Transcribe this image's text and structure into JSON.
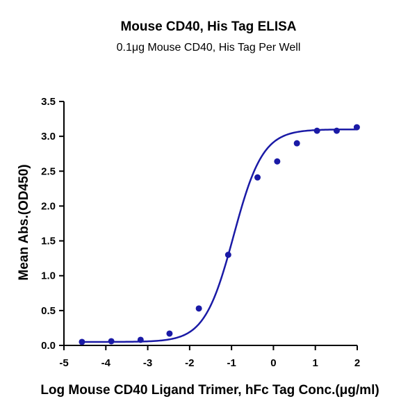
{
  "chart_data": {
    "type": "scatter",
    "title": "Mouse CD40, His Tag ELISA",
    "subtitle": "0.1μg Mouse CD40, His Tag Per Well",
    "xlabel": "Log Mouse CD40 Ligand Trimer, hFc Tag Conc.(μg/ml)",
    "ylabel": "Mean Abs.(OD450)",
    "xlim": [
      -5,
      2
    ],
    "ylim": [
      0,
      3.5
    ],
    "x_ticks": [
      "-5",
      "-4",
      "-3",
      "-2",
      "-1",
      "0",
      "1",
      "2"
    ],
    "y_ticks": [
      "0.0",
      "0.5",
      "1.0",
      "1.5",
      "2.0",
      "2.5",
      "3.0",
      "3.5"
    ],
    "grid": false,
    "legend": "none",
    "point_color": "#1a1aa6",
    "curve_color": "#1a1aa6",
    "series": [
      {
        "x": [
          -4.57,
          -3.87,
          -3.17,
          -2.48,
          -1.78,
          -1.08,
          -0.38,
          0.09,
          0.56,
          1.04,
          1.51,
          1.99
        ],
        "y": [
          0.05,
          0.06,
          0.08,
          0.17,
          0.53,
          1.3,
          2.41,
          2.64,
          2.9,
          3.08,
          3.08,
          3.13
        ]
      }
    ],
    "fit": {
      "model": "4PL",
      "bottom": 0.05,
      "top": 3.1,
      "log_ec50": -0.95,
      "hill_slope": 1.25
    }
  }
}
